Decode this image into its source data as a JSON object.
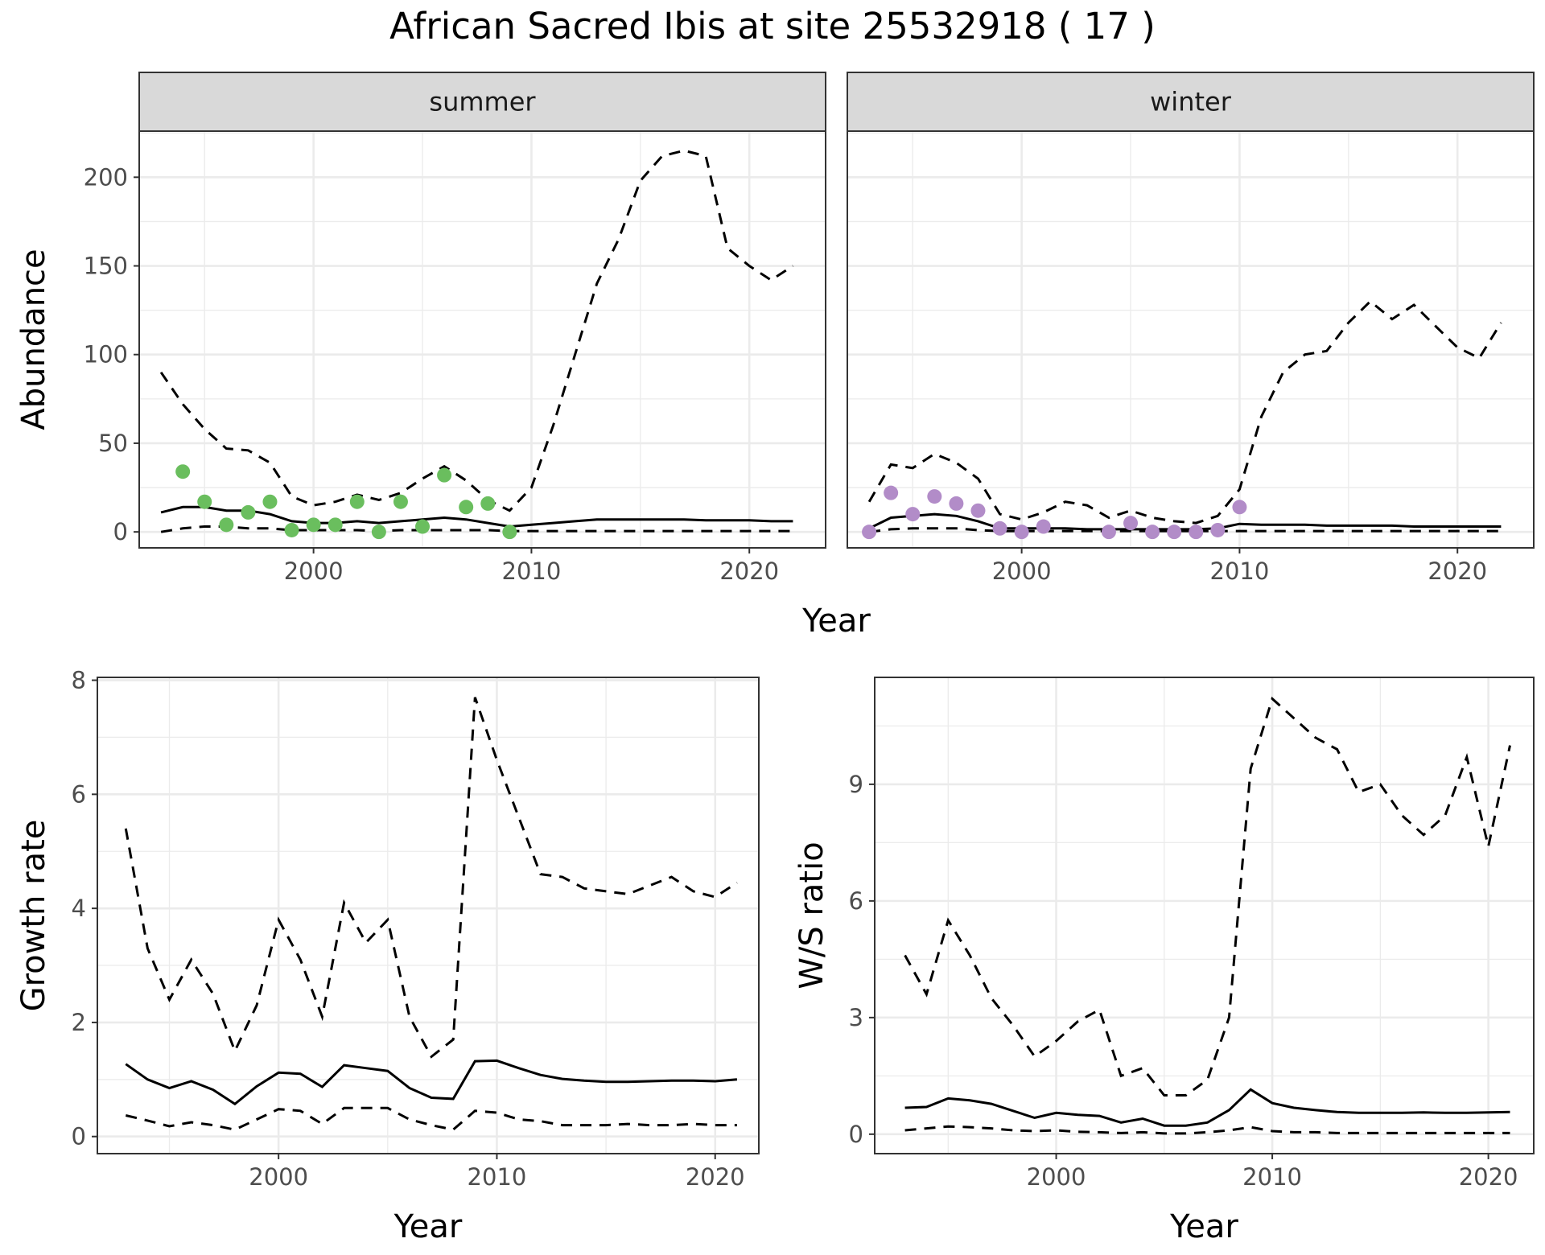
{
  "figure_title": "African Sacred Ibis at site 25532918 ( 17 )",
  "chart_data": [
    {
      "type": "line",
      "panel": "abundance",
      "facets": [
        "summer",
        "winter"
      ],
      "xlabel": "Year",
      "ylabel": "Abundance",
      "xlim": [
        1992,
        2023.5
      ],
      "ylim": [
        -9,
        226
      ],
      "x_ticks": [
        2000,
        2010,
        2020
      ],
      "y_ticks": [
        0,
        50,
        100,
        150,
        200
      ],
      "grid": true,
      "series_by_facet": {
        "summer": {
          "color": "#6ABE5E",
          "x": [
            1993,
            1994,
            1995,
            1996,
            1997,
            1998,
            1999,
            2000,
            2001,
            2002,
            2003,
            2004,
            2005,
            2006,
            2007,
            2008,
            2009,
            2010,
            2011,
            2012,
            2013,
            2014,
            2015,
            2016,
            2017,
            2018,
            2019,
            2020,
            2021,
            2022
          ],
          "estimate": [
            11,
            14,
            14,
            12,
            12,
            10,
            6,
            5,
            5,
            6,
            5,
            6,
            7,
            8,
            7,
            5,
            3,
            4,
            5,
            6,
            7,
            7,
            7,
            7,
            7,
            6.5,
            6.5,
            6.5,
            6,
            6
          ],
          "upper": [
            90,
            72,
            58,
            47,
            46,
            39,
            20,
            15,
            17,
            21,
            18,
            22,
            30,
            37,
            29,
            18,
            12,
            25,
            60,
            100,
            140,
            165,
            198,
            212,
            215,
            212,
            160,
            150,
            142,
            150
          ],
          "lower": [
            0,
            2,
            3,
            3,
            2,
            2,
            1,
            1,
            1,
            1,
            0.5,
            1,
            1,
            1,
            1,
            1,
            0.5,
            0.5,
            0.5,
            0.5,
            0.5,
            0.5,
            0.5,
            0.5,
            0.5,
            0.5,
            0.5,
            0.5,
            0.5,
            0.5
          ],
          "obs_x": [
            1994,
            1995,
            1996,
            1997,
            1998,
            1999,
            2000,
            2001,
            2002,
            2003,
            2004,
            2005,
            2006,
            2007,
            2008,
            2009
          ],
          "obs_y": [
            34,
            17,
            4,
            11,
            17,
            1,
            4,
            4,
            17,
            0,
            17,
            3,
            32,
            14,
            16,
            0
          ]
        },
        "winter": {
          "color": "#B28CC8",
          "x": [
            1993,
            1994,
            1995,
            1996,
            1997,
            1998,
            1999,
            2000,
            2001,
            2002,
            2003,
            2004,
            2005,
            2006,
            2007,
            2008,
            2009,
            2010,
            2011,
            2012,
            2013,
            2014,
            2015,
            2016,
            2017,
            2018,
            2019,
            2020,
            2021,
            2022
          ],
          "estimate": [
            2,
            8,
            9,
            10,
            9,
            6,
            2,
            2,
            2,
            2,
            1.5,
            1.5,
            1.5,
            1.5,
            1.5,
            1.5,
            2,
            4.5,
            4,
            4,
            4,
            3.5,
            3.5,
            3.5,
            3.5,
            3,
            3,
            3,
            3,
            3
          ],
          "upper": [
            17,
            38,
            36,
            44,
            39,
            30,
            10,
            7,
            11,
            17,
            15,
            8,
            12,
            8,
            6,
            5,
            9,
            24,
            65,
            90,
            100,
            102,
            118,
            130,
            120,
            128,
            116,
            104,
            98,
            118
          ],
          "lower": [
            0,
            1.5,
            2,
            2,
            2,
            1,
            0.5,
            0.5,
            0.5,
            0.5,
            0.5,
            0.5,
            0.5,
            0.5,
            0.5,
            0.5,
            0.5,
            0.5,
            0.5,
            0.5,
            0.5,
            0.5,
            0.5,
            0.5,
            0.5,
            0.5,
            0.5,
            0.5,
            0.5,
            0.5
          ],
          "obs_x": [
            1993,
            1994,
            1995,
            1996,
            1997,
            1998,
            1999,
            2000,
            2001,
            2004,
            2005,
            2006,
            2007,
            2008,
            2009,
            2010
          ],
          "obs_y": [
            0,
            22,
            10,
            20,
            16,
            12,
            2,
            0,
            3,
            0,
            5,
            0,
            0,
            0,
            1,
            14
          ]
        }
      }
    },
    {
      "type": "line",
      "panel": "growth",
      "xlabel": "Year",
      "ylabel": "Growth rate",
      "xlim": [
        1991.7,
        2022
      ],
      "ylim": [
        -0.3,
        8.05
      ],
      "x_ticks": [
        2000,
        2010,
        2020
      ],
      "y_ticks": [
        0,
        2,
        4,
        6,
        8
      ],
      "grid": true,
      "x": [
        1993,
        1994,
        1995,
        1996,
        1997,
        1998,
        1999,
        2000,
        2001,
        2002,
        2003,
        2004,
        2005,
        2006,
        2007,
        2008,
        2009,
        2010,
        2011,
        2012,
        2013,
        2014,
        2015,
        2016,
        2017,
        2018,
        2019,
        2020,
        2021
      ],
      "estimate": [
        1.27,
        1.0,
        0.85,
        0.97,
        0.82,
        0.57,
        0.88,
        1.12,
        1.1,
        0.87,
        1.25,
        1.2,
        1.15,
        0.85,
        0.68,
        0.66,
        1.32,
        1.33,
        1.2,
        1.08,
        1.01,
        0.98,
        0.96,
        0.96,
        0.97,
        0.98,
        0.98,
        0.97,
        1.0
      ],
      "upper": [
        5.4,
        3.3,
        2.4,
        3.1,
        2.5,
        1.5,
        2.3,
        3.8,
        3.1,
        2.1,
        4.1,
        3.4,
        3.8,
        2.1,
        1.4,
        1.7,
        7.7,
        6.6,
        5.6,
        4.6,
        4.55,
        4.35,
        4.3,
        4.25,
        4.4,
        4.55,
        4.3,
        4.2,
        4.45
      ],
      "lower": [
        0.37,
        0.28,
        0.18,
        0.25,
        0.2,
        0.12,
        0.3,
        0.48,
        0.45,
        0.22,
        0.5,
        0.5,
        0.5,
        0.3,
        0.2,
        0.12,
        0.45,
        0.42,
        0.3,
        0.27,
        0.2,
        0.2,
        0.2,
        0.22,
        0.2,
        0.2,
        0.22,
        0.2,
        0.2
      ]
    },
    {
      "type": "line",
      "panel": "ratio",
      "xlabel": "Year",
      "ylabel": "W/S ratio",
      "xlim": [
        1991.6,
        2022.1
      ],
      "ylim": [
        -0.5,
        11.75
      ],
      "x_ticks": [
        2000,
        2010,
        2020
      ],
      "y_ticks": [
        0,
        3,
        6,
        9
      ],
      "grid": true,
      "x": [
        1993,
        1994,
        1995,
        1996,
        1997,
        1998,
        1999,
        2000,
        2001,
        2002,
        2003,
        2004,
        2005,
        2006,
        2007,
        2008,
        2009,
        2010,
        2011,
        2012,
        2013,
        2014,
        2015,
        2016,
        2017,
        2018,
        2019,
        2020,
        2021
      ],
      "estimate": [
        0.68,
        0.7,
        0.92,
        0.87,
        0.78,
        0.6,
        0.42,
        0.55,
        0.5,
        0.47,
        0.3,
        0.4,
        0.22,
        0.22,
        0.3,
        0.62,
        1.15,
        0.8,
        0.68,
        0.62,
        0.57,
        0.55,
        0.55,
        0.55,
        0.56,
        0.55,
        0.55,
        0.56,
        0.57
      ],
      "upper": [
        4.6,
        3.6,
        5.5,
        4.6,
        3.5,
        2.8,
        2.0,
        2.4,
        2.9,
        3.2,
        1.5,
        1.7,
        1.0,
        1.0,
        1.4,
        3.0,
        9.4,
        11.2,
        10.7,
        10.2,
        9.9,
        8.8,
        9.0,
        8.2,
        7.7,
        8.2,
        9.7,
        7.4,
        10.0
      ],
      "lower": [
        0.1,
        0.15,
        0.2,
        0.18,
        0.15,
        0.1,
        0.08,
        0.1,
        0.06,
        0.05,
        0.03,
        0.05,
        0.02,
        0.02,
        0.05,
        0.1,
        0.18,
        0.08,
        0.05,
        0.05,
        0.03,
        0.03,
        0.03,
        0.03,
        0.03,
        0.03,
        0.03,
        0.03,
        0.03
      ]
    }
  ]
}
